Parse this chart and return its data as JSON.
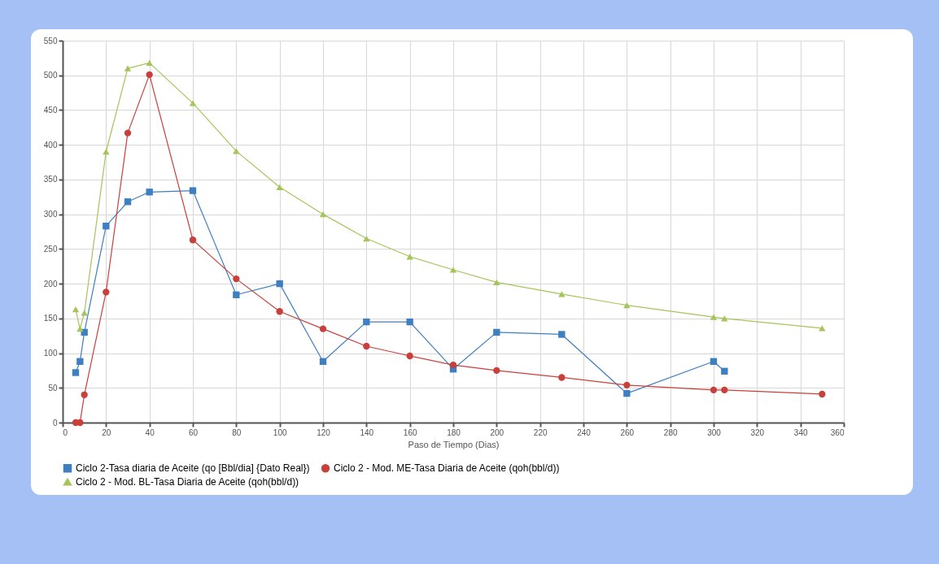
{
  "chart_data": {
    "type": "line",
    "xlabel": "Paso de Tiempo (Dias)",
    "xlim": [
      0,
      360
    ],
    "xticks": [
      0,
      20,
      40,
      60,
      80,
      100,
      120,
      140,
      160,
      180,
      200,
      220,
      240,
      260,
      280,
      300,
      320,
      340,
      360
    ],
    "ylim": [
      0,
      550
    ],
    "yticks": [
      0,
      50,
      100,
      150,
      200,
      250,
      300,
      350,
      400,
      450,
      500,
      550
    ],
    "grid": true,
    "legend": "bottom",
    "line_style": "solid",
    "series": [
      {
        "name": "Ciclo 2-Tasa diaria de Aceite (qo [Bbl/dia] {Dato Real})",
        "color": "#3d7fc1",
        "marker": "square",
        "x": [
          6,
          8,
          10,
          20,
          30,
          40,
          60,
          80,
          100,
          120,
          140,
          160,
          180,
          200,
          230,
          260,
          300,
          305
        ],
        "values": [
          72,
          88,
          130,
          283,
          318,
          332,
          334,
          184,
          200,
          88,
          145,
          145,
          77,
          130,
          127,
          42,
          88,
          74
        ]
      },
      {
        "name": "Ciclo 2 - Mod. ME-Tasa Diaria de Aceite (qoh(bbl/d))",
        "color": "#c9403a",
        "marker": "circle",
        "x": [
          6,
          8,
          10,
          20,
          30,
          40,
          60,
          80,
          100,
          120,
          140,
          160,
          180,
          200,
          230,
          260,
          300,
          305,
          350
        ],
        "values": [
          0,
          0,
          40,
          188,
          417,
          501,
          263,
          207,
          160,
          135,
          110,
          96,
          83,
          75,
          65,
          54,
          47,
          47,
          41
        ]
      },
      {
        "name": "Ciclo 2 - Mod. BL-Tasa Diaria de Aceite (qoh(bbl/d))",
        "color": "#a5c45a",
        "marker": "triangle",
        "x": [
          6,
          8,
          10,
          20,
          30,
          40,
          60,
          80,
          100,
          120,
          140,
          160,
          180,
          200,
          230,
          260,
          300,
          305,
          350
        ],
        "values": [
          163,
          135,
          158,
          390,
          510,
          518,
          460,
          391,
          339,
          300,
          265,
          239,
          220,
          202,
          185,
          169,
          152,
          150,
          136
        ]
      }
    ]
  }
}
